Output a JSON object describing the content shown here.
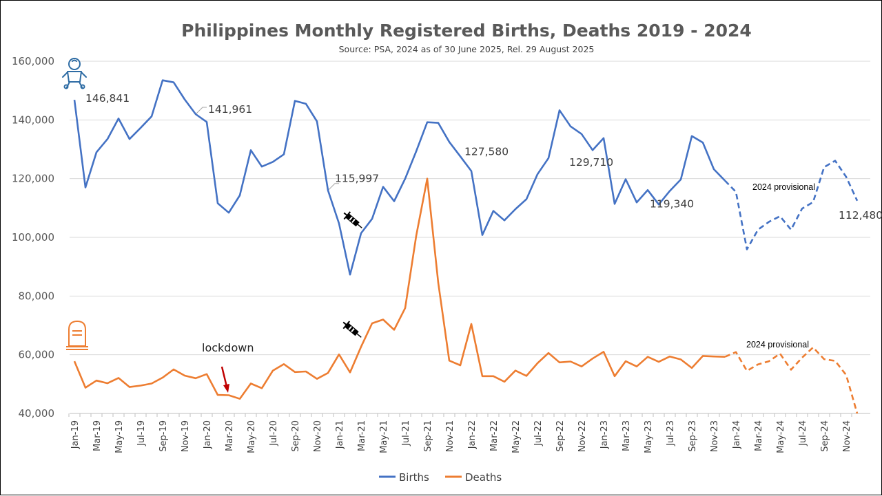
{
  "colors": {
    "births": "#4472C4",
    "deaths": "#ED7D31",
    "grid": "#D9D9D9",
    "arrow": "#C00000",
    "icon": "#2E6CA4"
  },
  "icons": {
    "births_icon": "baby-icon",
    "deaths_icon": "gravestone-icon",
    "vaccine_icon": "syringe-icon"
  },
  "chart_data": {
    "type": "line",
    "title": "Philippines Monthly Registered Births, Deaths 2019 - 2024",
    "subtitle": "Source: PSA, 2024 as of 30 June 2025, Rel. 29 August 2025",
    "ylim": [
      40000,
      160000
    ],
    "yticks": [
      "40,000",
      "60,000",
      "80,000",
      "100,000",
      "120,000",
      "140,000",
      "160,000"
    ],
    "ytick_values": [
      40000,
      60000,
      80000,
      100000,
      120000,
      140000,
      160000
    ],
    "categories": [
      "Jan-19",
      "Feb-19",
      "Mar-19",
      "Apr-19",
      "May-19",
      "Jun-19",
      "Jul-19",
      "Aug-19",
      "Sep-19",
      "Oct-19",
      "Nov-19",
      "Dec-19",
      "Jan-20",
      "Feb-20",
      "Mar-20",
      "Apr-20",
      "May-20",
      "Jun-20",
      "Jul-20",
      "Aug-20",
      "Sep-20",
      "Oct-20",
      "Nov-20",
      "Dec-20",
      "Jan-21",
      "Feb-21",
      "Mar-21",
      "Apr-21",
      "May-21",
      "Jun-21",
      "Jul-21",
      "Aug-21",
      "Sep-21",
      "Oct-21",
      "Nov-21",
      "Dec-21",
      "Jan-22",
      "Feb-22",
      "Mar-22",
      "Apr-22",
      "May-22",
      "Jun-22",
      "Jul-22",
      "Aug-22",
      "Sep-22",
      "Oct-22",
      "Nov-22",
      "Dec-22",
      "Jan-23",
      "Feb-23",
      "Mar-23",
      "Apr-23",
      "May-23",
      "Jun-23",
      "Jul-23",
      "Aug-23",
      "Sep-23",
      "Oct-23",
      "Nov-23",
      "Dec-23",
      "Jan-24",
      "Feb-24",
      "Mar-24",
      "Apr-24",
      "May-24",
      "Jun-24",
      "Jul-24",
      "Aug-24",
      "Sep-24",
      "Oct-24",
      "Nov-24",
      "Dec-24"
    ],
    "xtick_labels": [
      "Jan-19",
      "Mar-19",
      "May-19",
      "Jul-19",
      "Sep-19",
      "Nov-19",
      "Jan-20",
      "Mar-20",
      "May-20",
      "Jul-20",
      "Sep-20",
      "Nov-20",
      "Jan-21",
      "Mar-21",
      "May-21",
      "Jul-21",
      "Sep-21",
      "Nov-21",
      "Jan-22",
      "Mar-22",
      "May-22",
      "Jul-22",
      "Sep-22",
      "Nov-22",
      "Jan-23",
      "Mar-23",
      "May-23",
      "Jul-23",
      "Sep-23",
      "Nov-23",
      "Jan-24",
      "Mar-24",
      "May-24",
      "Jul-24",
      "Sep-24",
      "Nov-24"
    ],
    "provisional_from_index": 59,
    "series": [
      {
        "name": "Births",
        "values": [
          146841,
          117000,
          129000,
          133500,
          140500,
          133500,
          137300,
          141200,
          153500,
          152800,
          147000,
          141961,
          139300,
          111600,
          108400,
          114300,
          129700,
          124100,
          125700,
          128300,
          146500,
          145500,
          139500,
          115997,
          104700,
          87300,
          101400,
          106300,
          117200,
          112300,
          120000,
          129300,
          139200,
          139000,
          132500,
          127580,
          122600,
          100800,
          109000,
          105800,
          109600,
          113000,
          121500,
          127000,
          143300,
          137800,
          135200,
          129710,
          133800,
          111400,
          119800,
          111900,
          116100,
          111200,
          115800,
          119700,
          134500,
          132300,
          123200,
          119340,
          115500,
          95900,
          102600,
          105300,
          107200,
          102600,
          109800,
          112000,
          123900,
          126100,
          120600,
          112480
        ]
      },
      {
        "name": "Deaths",
        "values": [
          57800,
          48800,
          51200,
          50300,
          52100,
          49000,
          49500,
          50200,
          52200,
          55000,
          52900,
          52000,
          53400,
          46300,
          46200,
          45000,
          50200,
          48600,
          54600,
          56800,
          54100,
          54300,
          51800,
          53800,
          60100,
          54000,
          62700,
          70700,
          72000,
          68500,
          75900,
          100500,
          120000,
          84500,
          58000,
          56400,
          70500,
          52700,
          52700,
          50800,
          54600,
          52800,
          57100,
          60600,
          57400,
          57700,
          56000,
          58700,
          61000,
          52700,
          57800,
          56000,
          59300,
          57600,
          59400,
          58400,
          55500,
          59600,
          59400,
          59300,
          60900,
          54500,
          56700,
          57800,
          60400,
          54900,
          59000,
          62500,
          58500,
          57900,
          53100,
          40000
        ]
      }
    ],
    "data_labels": [
      {
        "series": "Births",
        "index": 0,
        "text": "146,841"
      },
      {
        "series": "Births",
        "index": 11,
        "text": "141,961"
      },
      {
        "series": "Births",
        "index": 23,
        "text": "115,997"
      },
      {
        "series": "Births",
        "index": 35,
        "text": "127,580"
      },
      {
        "series": "Births",
        "index": 47,
        "text": "129,710"
      },
      {
        "series": "Births",
        "index": 59,
        "text": "119,340"
      },
      {
        "series": "Births",
        "index": 71,
        "text": "112,480"
      }
    ],
    "annotations": {
      "lockdown": "lockdown",
      "births_provisional": "2024 provisional",
      "deaths_provisional": "2024 provisional"
    },
    "legend": [
      "Births",
      "Deaths"
    ],
    "legend_position": "bottom",
    "grid": true
  }
}
